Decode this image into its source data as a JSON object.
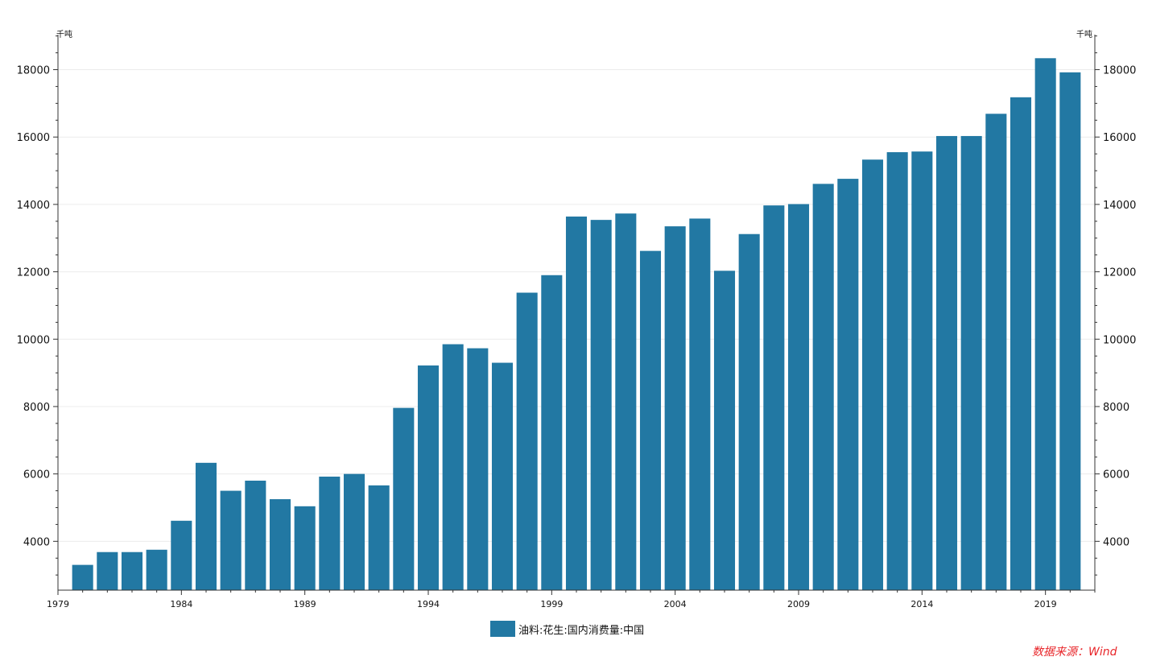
{
  "chart_data": {
    "type": "bar",
    "x": [
      1980,
      1981,
      1982,
      1983,
      1984,
      1985,
      1986,
      1987,
      1988,
      1989,
      1990,
      1991,
      1992,
      1993,
      1994,
      1995,
      1996,
      1997,
      1998,
      1999,
      2000,
      2001,
      2002,
      2003,
      2004,
      2005,
      2006,
      2007,
      2008,
      2009,
      2010,
      2011,
      2012,
      2013,
      2014,
      2015,
      2016,
      2017,
      2018,
      2019,
      2020
    ],
    "x_ticks": [
      "1979",
      "1984",
      "1989",
      "1994",
      "1999",
      "2004",
      "2009",
      "2014",
      "2019"
    ],
    "series": [
      {
        "name": "油料:花生:国内消费量:中国",
        "values": [
          3300,
          3680,
          3680,
          3750,
          4610,
          6330,
          5500,
          5800,
          5250,
          5040,
          5920,
          6000,
          5660,
          7960,
          9220,
          9850,
          9730,
          9300,
          11380,
          11900,
          13640,
          13540,
          13730,
          12620,
          13350,
          13580,
          12030,
          13120,
          13970,
          14010,
          14610,
          14760,
          15330,
          15550,
          15570,
          16030,
          16030,
          16690,
          17180,
          18340,
          17920
        ]
      }
    ],
    "y_ticks": [
      "4000",
      "6000",
      "8000",
      "10000",
      "12000",
      "14000",
      "16000",
      "18000"
    ],
    "ylim": [
      2550,
      19040
    ],
    "xlim": [
      1979,
      2021
    ],
    "ylabel_left": "千吨",
    "ylabel_right": "千吨",
    "bar_color": "#2278a3",
    "grid": true,
    "legend_placement": "bottom-center",
    "source": "数据来源：Wind"
  }
}
